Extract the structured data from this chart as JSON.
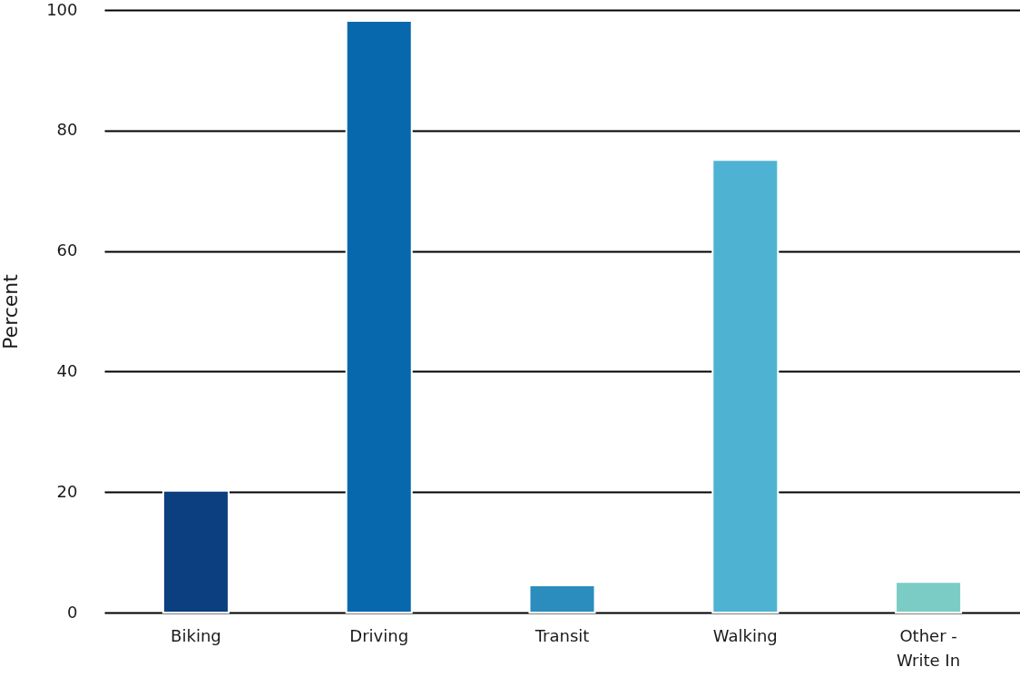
{
  "chart_data": {
    "type": "bar",
    "ylabel": "Percent",
    "categories": [
      "Biking",
      "Driving",
      "Transit",
      "Walking",
      "Other - Write In"
    ],
    "values": [
      20.2,
      98.2,
      4.5,
      75.1,
      5.1
    ],
    "colors": [
      "#0b3f80",
      "#0868ae",
      "#2b8cbe",
      "#4eb3d3",
      "#7bccc4"
    ],
    "ylim": [
      0,
      100
    ],
    "yticks": [
      0,
      20,
      40,
      60,
      80,
      100
    ],
    "grid": "y"
  }
}
